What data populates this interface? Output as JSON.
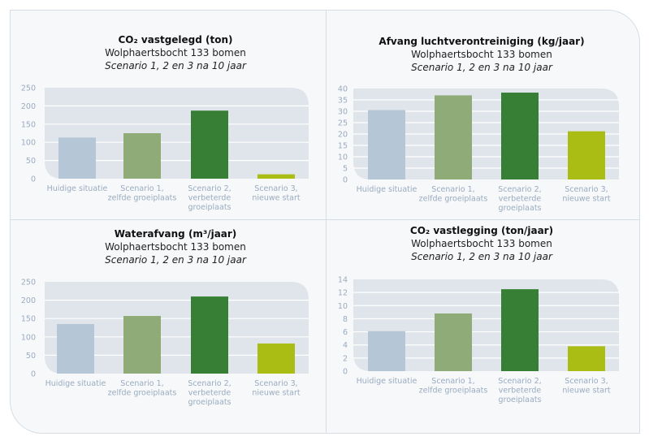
{
  "colors": {
    "current": "#b5c6d6",
    "scenario1": "#8eab78",
    "scenario2": "#367f34",
    "scenario3": "#aabd14",
    "plot_bg": "#dfe5ea",
    "grid": "#ffffff"
  },
  "chart_data": [
    {
      "type": "bar",
      "title": "CO₂ vastgelegd (ton)",
      "subtitle": "Wolphaertsbocht 133 bomen",
      "subtitle2": "Scenario 1, 2 en 3 na 10 jaar",
      "categories": [
        [
          "Huidige situatie"
        ],
        [
          "Scenario 1,",
          "zelfde groeiplaats"
        ],
        [
          "Scenario 2,",
          "verbeterde",
          "groeiplaats"
        ],
        [
          "Scenario 3,",
          "nieuwe start"
        ]
      ],
      "values": [
        113,
        125,
        187,
        12
      ],
      "ylim": [
        0,
        250
      ],
      "yticks": [
        0,
        50,
        100,
        150,
        200,
        250
      ],
      "grid": true
    },
    {
      "type": "bar",
      "title": "Afvang luchtverontreiniging (kg/jaar)",
      "subtitle": "Wolphaertsbocht 133 bomen",
      "subtitle2": "Scenario 1, 2 en 3 na 10 jaar",
      "categories": [
        [
          "Huidige situatie"
        ],
        [
          "Scenario 1,",
          "zelfde groeiplaats"
        ],
        [
          "Scenario 2,",
          "verbeterde",
          "groeiplaats"
        ],
        [
          "Scenario 3,",
          "nieuwe start"
        ]
      ],
      "values": [
        30.5,
        37,
        38.2,
        21.2
      ],
      "ylim": [
        0,
        40
      ],
      "yticks": [
        0,
        5,
        10,
        15,
        20,
        25,
        30,
        35,
        40
      ],
      "grid": true
    },
    {
      "type": "bar",
      "title": "Waterafvang (m³/jaar)",
      "subtitle": "Wolphaertsbocht 133 bomen",
      "subtitle2": "Scenario 1, 2 en 3 na 10 jaar",
      "categories": [
        [
          "Huidige situatie"
        ],
        [
          "Scenario 1,",
          "zelfde groeiplaats"
        ],
        [
          "Scenario 2,",
          "verbeterde",
          "groeiplaats"
        ],
        [
          "Scenario 3,",
          "nieuwe start"
        ]
      ],
      "values": [
        135,
        157,
        210,
        82
      ],
      "ylim": [
        0,
        250
      ],
      "yticks": [
        0,
        50,
        100,
        150,
        200,
        250
      ],
      "grid": true
    },
    {
      "type": "bar",
      "title": "CO₂ vastlegging (ton/jaar)",
      "subtitle": "Wolphaertsbocht 133 bomen",
      "subtitle2": "Scenario 1, 2 en 3 na 10 jaar",
      "categories": [
        [
          "Huidige situatie"
        ],
        [
          "Scenario 1,",
          "zelfde groeiplaats"
        ],
        [
          "Scenario 2,",
          "verbeterde",
          "groeiplaats"
        ],
        [
          "Scenario 3,",
          "nieuwe start"
        ]
      ],
      "values": [
        6.1,
        8.8,
        12.5,
        3.8
      ],
      "ylim": [
        0,
        14
      ],
      "yticks": [
        0,
        2,
        4,
        6,
        8,
        10,
        12,
        14
      ],
      "grid": true
    }
  ]
}
